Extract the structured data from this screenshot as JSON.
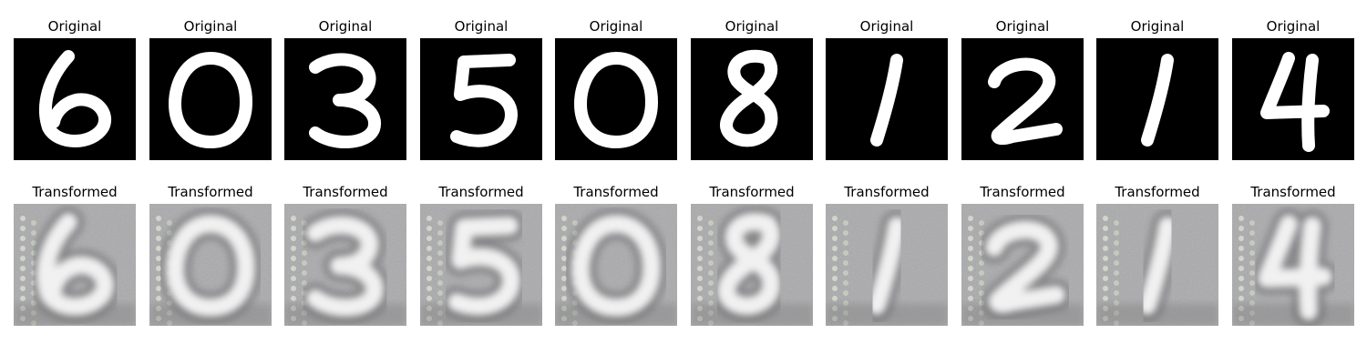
{
  "panels": [
    {
      "original_title": "Original",
      "transformed_title": "Transformed",
      "digit": "6"
    },
    {
      "original_title": "Original",
      "transformed_title": "Transformed",
      "digit": "0"
    },
    {
      "original_title": "Original",
      "transformed_title": "Transformed",
      "digit": "3"
    },
    {
      "original_title": "Original",
      "transformed_title": "Transformed",
      "digit": "5"
    },
    {
      "original_title": "Original",
      "transformed_title": "Transformed",
      "digit": "0"
    },
    {
      "original_title": "Original",
      "transformed_title": "Transformed",
      "digit": "8"
    },
    {
      "original_title": "Original",
      "transformed_title": "Transformed",
      "digit": "1"
    },
    {
      "original_title": "Original",
      "transformed_title": "Transformed",
      "digit": "2"
    },
    {
      "original_title": "Original",
      "transformed_title": "Transformed",
      "digit": "1"
    },
    {
      "original_title": "Original",
      "transformed_title": "Transformed",
      "digit": "4"
    }
  ]
}
